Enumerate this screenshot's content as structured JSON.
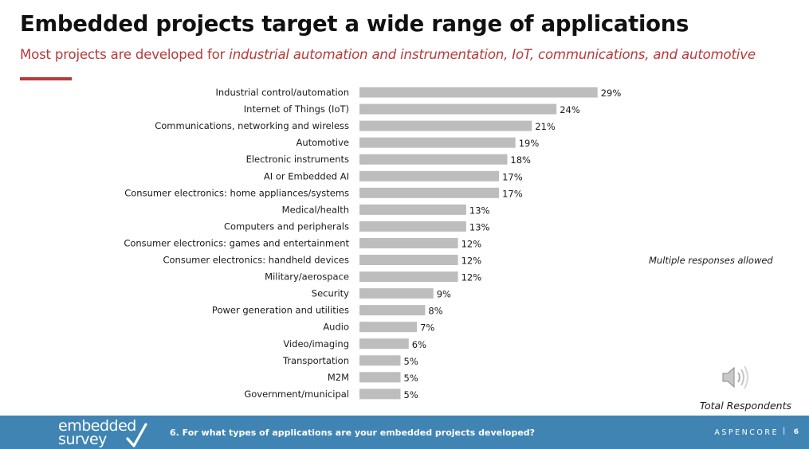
{
  "header": {
    "title": "Embedded projects target a wide range of applications",
    "subtitle_prefix": "Most projects are developed for ",
    "subtitle_emphasis": "industrial automation and instrumentation, IoT, communications, and automotive"
  },
  "notes": {
    "multiple_responses": "Multiple responses allowed",
    "total_respondents": "Total Respondents"
  },
  "footer": {
    "logo_line1": "embedded",
    "logo_line2": "survey",
    "question": "6. For what types of applications are your embedded projects developed?",
    "brand": "ASPENCORE",
    "separator": "|",
    "page_number": "6"
  },
  "icons": {
    "speaker": "speaker-icon",
    "checkmark": "checkmark-icon"
  },
  "colors": {
    "title": "#111111",
    "accent": "#b73a3a",
    "bar": "#bdbdbd",
    "footer": "#3f84b3"
  },
  "chart_data": {
    "type": "bar",
    "orientation": "horizontal",
    "title": "Embedded projects target a wide range of applications",
    "xlabel": "",
    "ylabel": "",
    "xlim": [
      0,
      100
    ],
    "value_suffix": "%",
    "grid": false,
    "legend": "none",
    "categories": [
      "Industrial control/automation",
      "Internet of Things (IoT)",
      "Communications, networking and wireless",
      "Automotive",
      "Electronic instruments",
      "AI or Embedded AI",
      "Consumer electronics: home appliances/systems",
      "Medical/health",
      "Computers and peripherals",
      "Consumer electronics: games and entertainment",
      "Consumer electronics: handheld devices",
      "Military/aerospace",
      "Security",
      "Power generation and utilities",
      "Audio",
      "Video/imaging",
      "Transportation",
      "M2M",
      "Government/municipal"
    ],
    "values": [
      29,
      24,
      21,
      19,
      18,
      17,
      17,
      13,
      13,
      12,
      12,
      12,
      9,
      8,
      7,
      6,
      5,
      5,
      5
    ]
  }
}
